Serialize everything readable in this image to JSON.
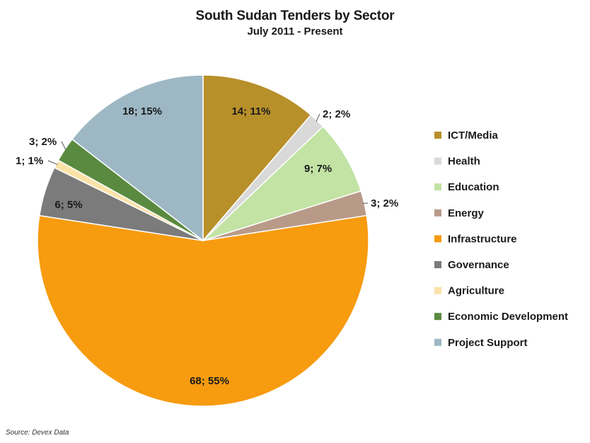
{
  "chart_data": {
    "type": "pie",
    "title": "South Sudan Tenders by Sector",
    "subtitle": "July 2011 - Present",
    "legend_position": "right",
    "slices": [
      {
        "name": "ICT/Media",
        "value": 14,
        "percent": 11,
        "label": "14; 11%",
        "color": "#b8902a"
      },
      {
        "name": "Health",
        "value": 2,
        "percent": 2,
        "label": "2; 2%",
        "color": "#d9d9d9"
      },
      {
        "name": "Education",
        "value": 9,
        "percent": 7,
        "label": "9; 7%",
        "color": "#c2e3a4"
      },
      {
        "name": "Energy",
        "value": 3,
        "percent": 2,
        "label": "3; 2%",
        "color": "#b99a88"
      },
      {
        "name": "Infrastructure",
        "value": 68,
        "percent": 55,
        "label": "68; 55%",
        "color": "#f79b0f"
      },
      {
        "name": "Governance",
        "value": 6,
        "percent": 5,
        "label": "6; 5%",
        "color": "#7b7b7b"
      },
      {
        "name": "Agriculture",
        "value": 1,
        "percent": 1,
        "label": "1; 1%",
        "color": "#fbe2a8"
      },
      {
        "name": "Economic Development",
        "value": 3,
        "percent": 2,
        "label": "3; 2%",
        "color": "#5a8a3f"
      },
      {
        "name": "Project Support",
        "value": 18,
        "percent": 15,
        "label": "18; 15%",
        "color": "#9db8c4"
      }
    ]
  },
  "source_text": "Source: Devex Data"
}
